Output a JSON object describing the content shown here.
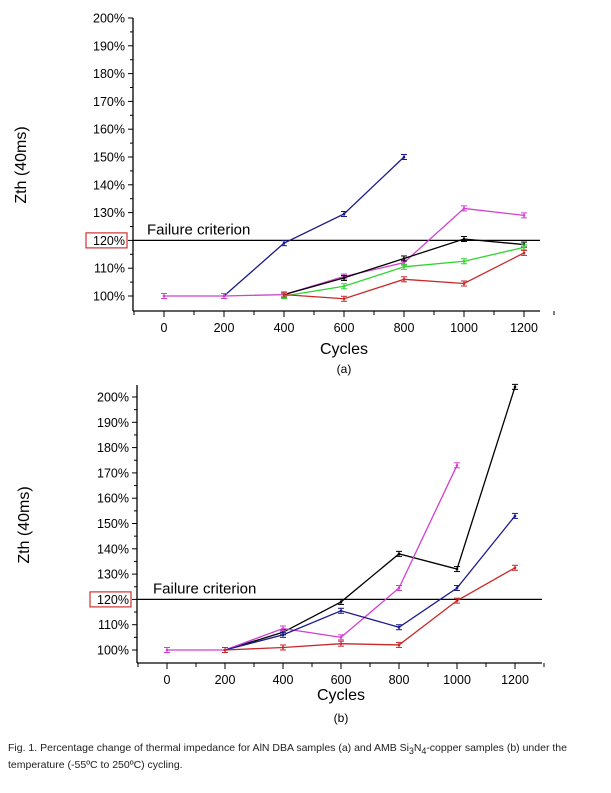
{
  "chart_data": [
    {
      "type": "line",
      "panel_label": "(a)",
      "xlabel": "Cycles",
      "ylabel": "Zth (40ms)",
      "xlim": [
        -100,
        1300
      ],
      "ylim": [
        95,
        200
      ],
      "x_ticks": [
        0,
        200,
        400,
        600,
        800,
        1000,
        1200
      ],
      "x_tick_labels": [
        "0",
        "200",
        "400",
        "600",
        "800",
        "1000",
        "1200"
      ],
      "y_ticks": [
        100,
        110,
        120,
        130,
        140,
        150,
        160,
        170,
        180,
        190,
        200
      ],
      "y_tick_labels": [
        "100%",
        "110%",
        "120%",
        "130%",
        "140%",
        "150%",
        "160%",
        "170%",
        "180%",
        "190%",
        "200%"
      ],
      "highlighted_tick": "120%",
      "threshold": {
        "value": 120,
        "label": "Failure criterion"
      },
      "grid": false,
      "series": [
        {
          "name": "blue",
          "color": "#1a1a8c",
          "x": [
            200,
            400,
            600,
            800
          ],
          "values": [
            100,
            119,
            129.5,
            150
          ]
        },
        {
          "name": "magenta",
          "color": "#d23fd2",
          "x": [
            0,
            200,
            400,
            600,
            800,
            1000,
            1200
          ],
          "values": [
            100,
            100,
            100.5,
            107,
            112,
            131.5,
            129
          ]
        },
        {
          "name": "black",
          "color": "#000000",
          "x": [
            400,
            600,
            800,
            1000,
            1200
          ],
          "values": [
            100.5,
            106.5,
            113.5,
            120.5,
            118.5
          ]
        },
        {
          "name": "green",
          "color": "#2fd42f",
          "x": [
            400,
            600,
            800,
            1000,
            1200
          ],
          "values": [
            100,
            103.5,
            110.5,
            112.5,
            117.5
          ]
        },
        {
          "name": "red",
          "color": "#c82828",
          "x": [
            400,
            600,
            800,
            1000,
            1200
          ],
          "values": [
            100.5,
            99,
            106,
            104.5,
            115.5
          ]
        }
      ]
    },
    {
      "type": "line",
      "panel_label": "(b)",
      "xlabel": "Cycles",
      "ylabel": "Zth (40ms)",
      "xlim": [
        -100,
        1300
      ],
      "ylim": [
        95,
        205
      ],
      "x_ticks": [
        0,
        200,
        400,
        600,
        800,
        1000,
        1200
      ],
      "x_tick_labels": [
        "0",
        "200",
        "400",
        "600",
        "800",
        "1000",
        "1200"
      ],
      "y_ticks": [
        100,
        110,
        120,
        130,
        140,
        150,
        160,
        170,
        180,
        190,
        200
      ],
      "y_tick_labels": [
        "100%",
        "110%",
        "120%",
        "130%",
        "140%",
        "150%",
        "160%",
        "170%",
        "180%",
        "190%",
        "200%"
      ],
      "highlighted_tick": "120%",
      "threshold": {
        "value": 120,
        "label": "Failure criterion"
      },
      "grid": false,
      "series": [
        {
          "name": "black",
          "color": "#000000",
          "x": [
            200,
            400,
            600,
            800,
            1000,
            1200
          ],
          "values": [
            100,
            107,
            119,
            138,
            132,
            204
          ]
        },
        {
          "name": "magenta",
          "color": "#d23fd2",
          "x": [
            0,
            200,
            400,
            600,
            800,
            1000
          ],
          "values": [
            100,
            100,
            108.5,
            105,
            124.5,
            173
          ]
        },
        {
          "name": "blue",
          "color": "#1a1a8c",
          "x": [
            200,
            400,
            600,
            800,
            1000,
            1200
          ],
          "values": [
            100,
            106,
            115.5,
            109,
            124.5,
            153
          ]
        },
        {
          "name": "red",
          "color": "#c82828",
          "x": [
            200,
            400,
            600,
            800,
            1000,
            1200
          ],
          "values": [
            100,
            101,
            102.5,
            102,
            119.5,
            132.5
          ]
        }
      ]
    }
  ],
  "caption": {
    "line1_prefix": "Fig. 1. Percentage change of thermal impedance for AlN DBA samples (a) and AMB Si",
    "sub1": "3",
    "mid": "N",
    "sub2": "4",
    "line1_suffix": "-copper samples (b) under the temperature (-55ºC to 250ºC) cycling."
  }
}
